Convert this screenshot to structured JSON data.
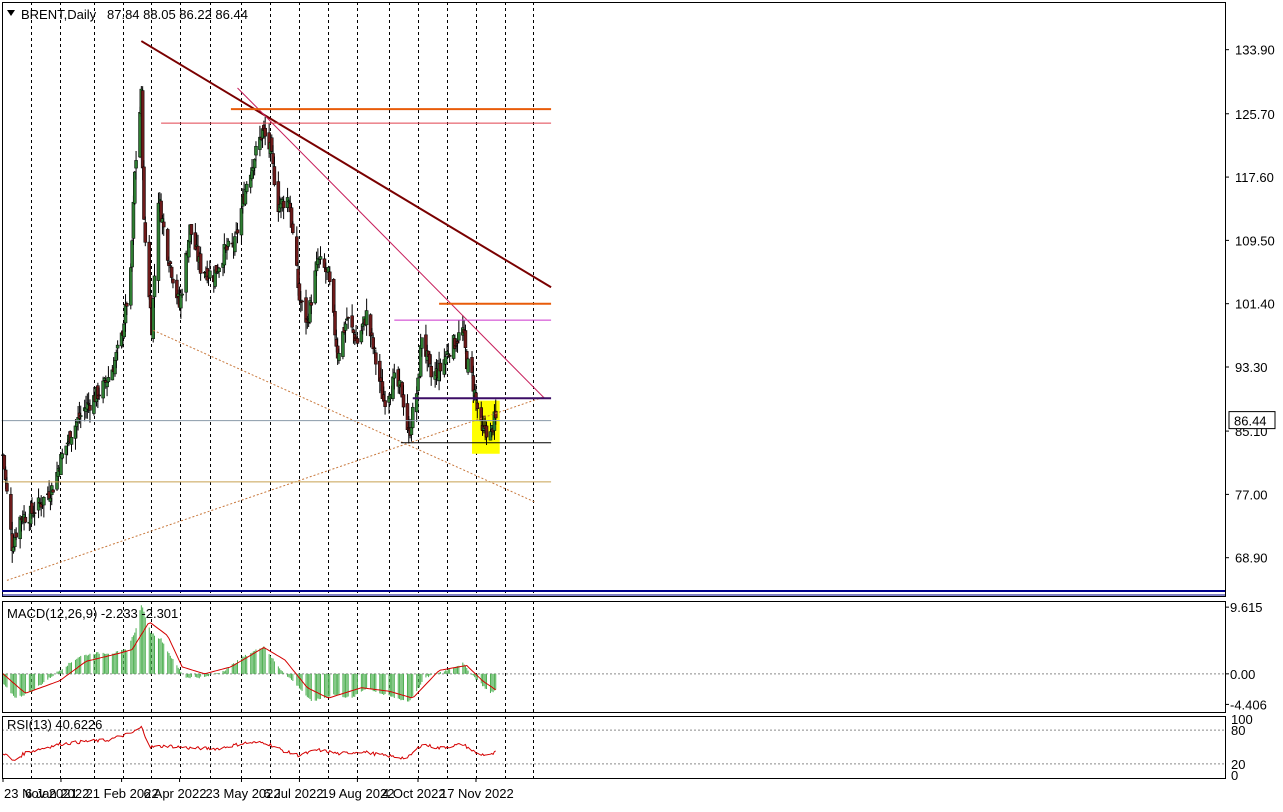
{
  "chart_data": {
    "type": "candlestick",
    "main": {
      "header_symbol": "BRENT,Daily",
      "header_ohlc": "87.84 88.05 86.22 86.44",
      "last_price_label": "86.44",
      "ylim": [
        64.0,
        140.0
      ],
      "y_ticks": [
        68.9,
        77.0,
        85.1,
        93.3,
        101.4,
        109.5,
        117.6,
        125.7,
        133.9
      ],
      "y_tick_labels": [
        "68.90",
        "77.00",
        "85.10",
        "93.30",
        "101.40",
        "109.50",
        "117.60",
        "125.70",
        "133.90"
      ],
      "x_labels": [
        "23 Nov 2021",
        "6 Jan 2022",
        "21 Feb 2022",
        "6 Apr 2022",
        "23 May 2022",
        "6 Jul 2022",
        "19 Aug 2022",
        "4 Oct 2022",
        "17 Nov 2022"
      ],
      "grid": true,
      "close_path": [
        [
          "2021-11-23",
          82
        ],
        [
          "2021-11-30",
          70.5
        ],
        [
          "2021-12-06",
          74
        ],
        [
          "2021-12-14",
          74.5
        ],
        [
          "2021-12-22",
          76
        ],
        [
          "2021-12-31",
          78
        ],
        [
          "2022-01-06",
          81.5
        ],
        [
          "2022-01-14",
          85
        ],
        [
          "2022-01-24",
          88
        ],
        [
          "2022-02-01",
          89.5
        ],
        [
          "2022-02-08",
          91
        ],
        [
          "2022-02-15",
          93.5
        ],
        [
          "2022-02-21",
          97
        ],
        [
          "2022-02-28",
          105
        ],
        [
          "2022-03-03",
          118
        ],
        [
          "2022-03-08",
          128
        ],
        [
          "2022-03-10",
          111.5
        ],
        [
          "2022-03-16",
          98.5
        ],
        [
          "2022-03-21",
          115
        ],
        [
          "2022-03-28",
          108
        ],
        [
          "2022-04-06",
          101
        ],
        [
          "2022-04-14",
          111
        ],
        [
          "2022-04-22",
          106
        ],
        [
          "2022-05-02",
          105
        ],
        [
          "2022-05-10",
          108
        ],
        [
          "2022-05-18",
          109
        ],
        [
          "2022-05-27",
          117
        ],
        [
          "2022-06-08",
          123.5
        ],
        [
          "2022-06-14",
          121
        ],
        [
          "2022-06-20",
          114
        ],
        [
          "2022-06-28",
          115
        ],
        [
          "2022-07-06",
          102
        ],
        [
          "2022-07-12",
          99
        ],
        [
          "2022-07-20",
          107
        ],
        [
          "2022-07-28",
          105
        ],
        [
          "2022-08-04",
          95
        ],
        [
          "2022-08-11",
          99.5
        ],
        [
          "2022-08-19",
          96.5
        ],
        [
          "2022-08-26",
          100
        ],
        [
          "2022-09-02",
          94
        ],
        [
          "2022-09-08",
          89
        ],
        [
          "2022-09-16",
          91.5
        ],
        [
          "2022-09-22",
          90
        ],
        [
          "2022-09-27",
          84.5
        ],
        [
          "2022-10-04",
          91
        ],
        [
          "2022-10-07",
          97.5
        ],
        [
          "2022-10-14",
          92
        ],
        [
          "2022-10-21",
          93
        ],
        [
          "2022-10-27",
          95.5
        ],
        [
          "2022-11-01",
          96.5
        ],
        [
          "2022-11-07",
          98
        ],
        [
          "2022-11-10",
          94
        ],
        [
          "2022-11-14",
          92
        ],
        [
          "2022-11-18",
          88
        ],
        [
          "2022-11-22",
          84.5
        ],
        [
          "2022-11-24",
          85.5
        ],
        [
          "2022-11-28",
          84.5
        ],
        [
          "2022-12-01",
          86.5
        ],
        [
          "2022-12-02",
          86.44
        ]
      ]
    },
    "trendlines": [
      {
        "from": [
          "2022-03-08",
          135.0
        ],
        "to": [
          "2023-01-13",
          103.5
        ],
        "color": "#7a0000"
      },
      {
        "from": [
          "2022-05-20",
          129.0
        ],
        "to": [
          "2023-01-08",
          89.3
        ],
        "color": "#c71f5c"
      },
      {
        "from": [
          "2021-11-26",
          66.0
        ],
        "to": [
          "2023-01-08",
          89.5
        ],
        "color": "#c8783c",
        "dotted": true
      },
      {
        "from": [
          "2022-03-17",
          98.0
        ],
        "to": [
          "2023-01-01",
          76.0
        ],
        "color": "#c8783c",
        "dotted": true
      },
      {
        "from": [
          "2022-05-15",
          126.3
        ],
        "to": [
          "2023-01-13",
          126.3
        ],
        "color": "#e85c0a"
      },
      {
        "from": [
          "2022-03-23",
          124.5
        ],
        "to": [
          "2023-01-13",
          124.5
        ],
        "color": "#e0404e"
      },
      {
        "from": [
          "2022-10-20",
          101.4
        ],
        "to": [
          "2023-01-13",
          101.4
        ],
        "color": "#e85c0a"
      },
      {
        "from": [
          "2022-09-16",
          99.3
        ],
        "to": [
          "2023-01-13",
          99.3
        ],
        "color": "#cc33cc"
      },
      {
        "from": [
          "2022-09-30",
          89.3
        ],
        "to": [
          "2023-01-13",
          89.3
        ],
        "color": "#3c0d66"
      },
      {
        "from": [
          "2022-09-21",
          83.6
        ],
        "to": [
          "2023-01-13",
          83.6
        ],
        "color": "#000000"
      },
      {
        "from": [
          "2021-11-22",
          78.6
        ],
        "to": [
          "2023-01-13",
          78.6
        ],
        "color": "#c8a050"
      },
      {
        "from": [
          "2021-11-22",
          86.44
        ],
        "to": [
          "2023-01-13",
          86.44
        ],
        "color": "#8a99a8"
      }
    ],
    "highlight_box": {
      "from": [
        "2022-11-14",
        82.2
      ],
      "to": [
        "2022-12-05",
        89.0
      ],
      "color": "#ffff00"
    },
    "macd": {
      "label": "MACD(12,26,9) -2.233 -2.301",
      "ylim": [
        -5.5,
        10.5
      ],
      "y_tick_labels": [
        "9.615",
        "0.00",
        "-4.406"
      ],
      "y_ticks": [
        9.615,
        0.0,
        -4.406
      ],
      "histogram_path": [
        [
          "2021-11-23",
          -1.5
        ],
        [
          "2021-12-03",
          -3.5
        ],
        [
          "2021-12-15",
          -2.5
        ],
        [
          "2022-01-05",
          0.5
        ],
        [
          "2022-01-20",
          2.5
        ],
        [
          "2022-02-01",
          3.0
        ],
        [
          "2022-02-15",
          3.0
        ],
        [
          "2022-02-25",
          3.5
        ],
        [
          "2022-03-04",
          6.5
        ],
        [
          "2022-03-08",
          10.0
        ],
        [
          "2022-03-15",
          6.0
        ],
        [
          "2022-03-23",
          5.0
        ],
        [
          "2022-04-01",
          2.0
        ],
        [
          "2022-04-10",
          -0.5
        ],
        [
          "2022-04-25",
          -0.5
        ],
        [
          "2022-05-10",
          0.5
        ],
        [
          "2022-05-25",
          2.5
        ],
        [
          "2022-06-09",
          4.0
        ],
        [
          "2022-06-20",
          1.0
        ],
        [
          "2022-07-06",
          -2.0
        ],
        [
          "2022-07-15",
          -4.0
        ],
        [
          "2022-08-01",
          -3.0
        ],
        [
          "2022-08-15",
          -3.5
        ],
        [
          "2022-08-26",
          -2.0
        ],
        [
          "2022-09-08",
          -3.0
        ],
        [
          "2022-09-27",
          -4.0
        ],
        [
          "2022-10-10",
          -0.5
        ],
        [
          "2022-10-25",
          0.5
        ],
        [
          "2022-11-07",
          1.5
        ],
        [
          "2022-11-16",
          -0.5
        ],
        [
          "2022-11-28",
          -2.8
        ],
        [
          "2022-12-02",
          -2.3
        ]
      ],
      "signal_path": [
        [
          "2021-11-23",
          0.0
        ],
        [
          "2021-12-10",
          -2.8
        ],
        [
          "2022-01-05",
          -1.0
        ],
        [
          "2022-01-25",
          1.8
        ],
        [
          "2022-02-20",
          3.0
        ],
        [
          "2022-03-01",
          3.5
        ],
        [
          "2022-03-14",
          7.5
        ],
        [
          "2022-03-28",
          5.5
        ],
        [
          "2022-04-08",
          1.0
        ],
        [
          "2022-04-25",
          0.0
        ],
        [
          "2022-05-15",
          1.0
        ],
        [
          "2022-06-09",
          3.8
        ],
        [
          "2022-06-25",
          2.0
        ],
        [
          "2022-07-12",
          -2.0
        ],
        [
          "2022-07-28",
          -3.5
        ],
        [
          "2022-08-22",
          -2.0
        ],
        [
          "2022-09-12",
          -2.5
        ],
        [
          "2022-09-30",
          -3.5
        ],
        [
          "2022-10-20",
          0.5
        ],
        [
          "2022-11-10",
          1.2
        ],
        [
          "2022-11-22",
          -1.0
        ],
        [
          "2022-12-02",
          -2.3
        ]
      ]
    },
    "rsi": {
      "label": "RSI(13) 40.6226",
      "ylim": [
        -5,
        105
      ],
      "y_tick_labels": [
        "100",
        "80",
        "20",
        "0"
      ],
      "y_ticks": [
        100,
        80,
        20,
        0
      ],
      "path": [
        [
          "2021-11-23",
          40
        ],
        [
          "2021-12-01",
          25
        ],
        [
          "2021-12-10",
          40
        ],
        [
          "2022-01-05",
          55
        ],
        [
          "2022-01-25",
          60
        ],
        [
          "2022-02-10",
          62
        ],
        [
          "2022-03-01",
          75
        ],
        [
          "2022-03-08",
          85
        ],
        [
          "2022-03-15",
          50
        ],
        [
          "2022-03-28",
          52
        ],
        [
          "2022-04-15",
          48
        ],
        [
          "2022-05-05",
          47
        ],
        [
          "2022-05-25",
          57
        ],
        [
          "2022-06-10",
          58
        ],
        [
          "2022-06-25",
          42
        ],
        [
          "2022-07-06",
          35
        ],
        [
          "2022-07-20",
          45
        ],
        [
          "2022-08-05",
          38
        ],
        [
          "2022-08-22",
          42
        ],
        [
          "2022-09-08",
          35
        ],
        [
          "2022-09-26",
          30
        ],
        [
          "2022-10-07",
          55
        ],
        [
          "2022-10-20",
          48
        ],
        [
          "2022-11-07",
          55
        ],
        [
          "2022-11-18",
          38
        ],
        [
          "2022-11-28",
          35
        ],
        [
          "2022-12-02",
          40.6
        ]
      ]
    }
  }
}
